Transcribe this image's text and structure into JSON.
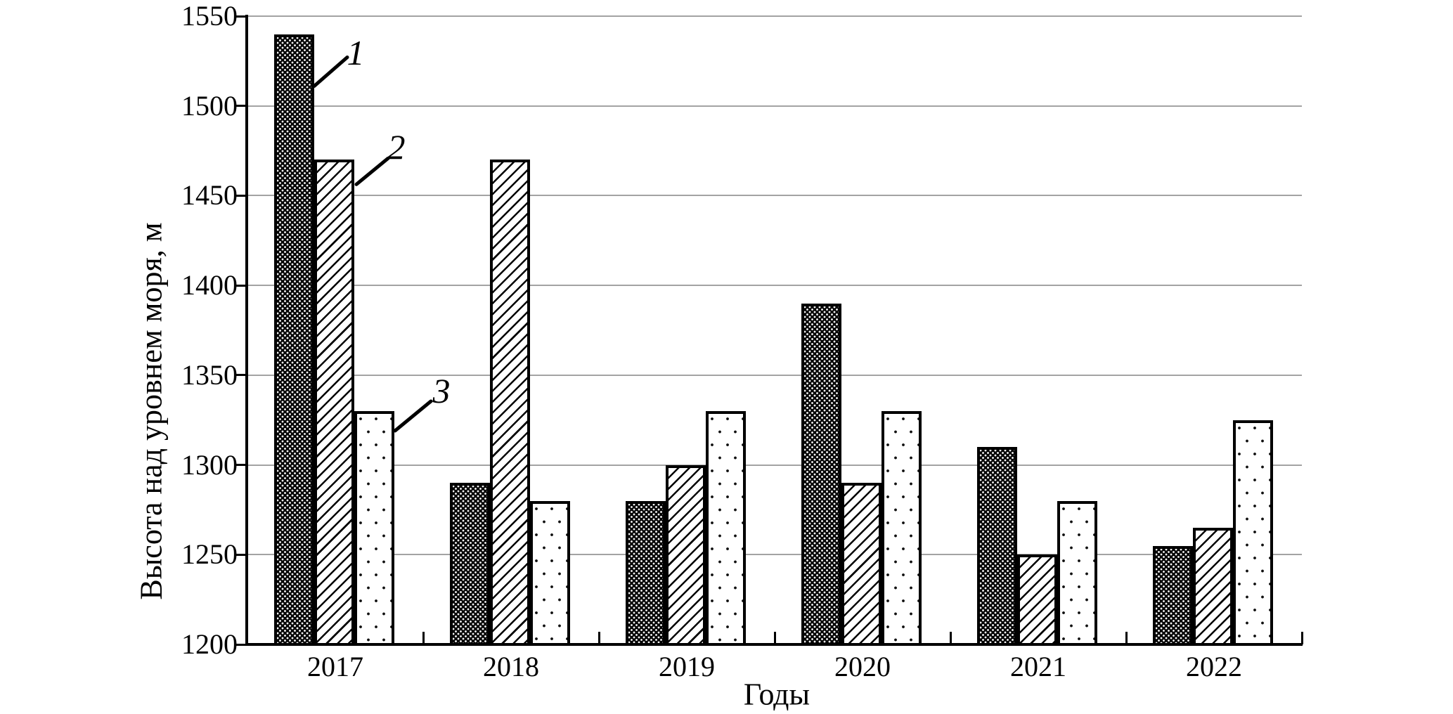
{
  "figure": {
    "y_axis_title": "Высота над уровнем моря, м",
    "x_axis_title": "Годы"
  },
  "chart_data": {
    "type": "bar",
    "title": "",
    "categories": [
      "2017",
      "2018",
      "2019",
      "2020",
      "2021",
      "2022"
    ],
    "series": [
      {
        "name": "1",
        "pattern": "dense-black-with-white-dots",
        "values": [
          1540,
          1290,
          1280,
          1390,
          1310,
          1255
        ]
      },
      {
        "name": "2",
        "pattern": "diagonal-hatch",
        "values": [
          1470,
          1470,
          1300,
          1290,
          1250,
          1265
        ]
      },
      {
        "name": "3",
        "pattern": "sparse-black-dots-on-white",
        "values": [
          1330,
          1280,
          1330,
          1330,
          1280,
          1325
        ]
      }
    ],
    "xlabel": "Годы",
    "ylabel": "Высота над уровнем моря, м",
    "ylim": [
      1200,
      1550
    ],
    "y_ticks": [
      1200,
      1250,
      1300,
      1350,
      1400,
      1450,
      1500,
      1550
    ],
    "grid": "horizontal-gray-lines",
    "legend_position": "callout-labels-on-first-group",
    "annotations": [
      {
        "label": "1",
        "series_index": 0,
        "category_index": 0
      },
      {
        "label": "2",
        "series_index": 1,
        "category_index": 0
      },
      {
        "label": "3",
        "series_index": 2,
        "category_index": 0
      }
    ],
    "colors": {
      "bar_stroke": "#000000",
      "bar_fill": "#ffffff",
      "gridline": "#a3a3a3",
      "axis": "#000000",
      "text": "#000000"
    }
  }
}
